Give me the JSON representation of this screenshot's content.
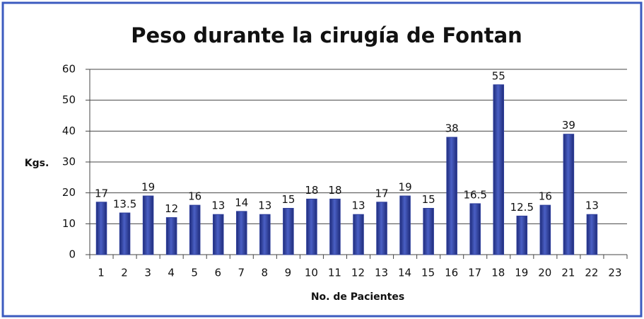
{
  "chart_data": {
    "type": "bar",
    "title": "Peso durante la cirugía de Fontan",
    "x_label": "No. de Pacientes",
    "y_label": "Kgs.",
    "categories": [
      "1",
      "2",
      "3",
      "4",
      "5",
      "6",
      "7",
      "8",
      "9",
      "10",
      "11",
      "12",
      "13",
      "14",
      "15",
      "16",
      "17",
      "18",
      "19",
      "20",
      "21",
      "22",
      "23"
    ],
    "values": [
      17,
      13.5,
      19,
      12,
      16,
      13,
      14,
      13,
      15,
      18,
      18,
      13,
      17,
      19,
      15,
      38,
      16.5,
      55,
      12.5,
      16,
      39,
      13,
      null
    ],
    "color": "#2f3f9c",
    "ylim": [
      0,
      60
    ],
    "yticks": [
      0,
      10,
      20,
      30,
      40,
      50,
      60
    ],
    "grid": true
  }
}
